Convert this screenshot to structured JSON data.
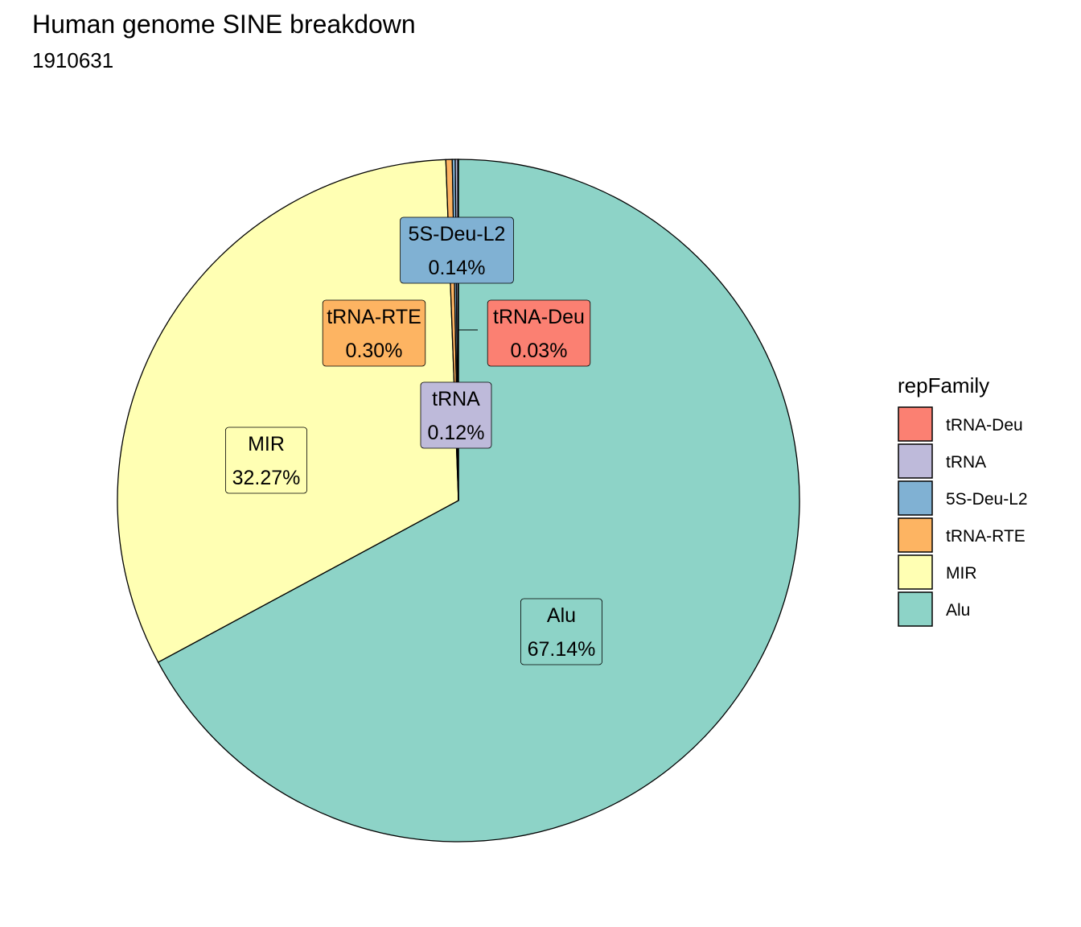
{
  "title": "Human genome SINE breakdown",
  "subtitle": "1910631",
  "chart_data": {
    "type": "pie",
    "title": "Human genome SINE breakdown",
    "subtitle": "1910631",
    "legend_title": "repFamily",
    "legend_position": "right",
    "start": "12 o'clock, clockwise from Alu",
    "slices": [
      {
        "name": "Alu",
        "percent": 67.14,
        "label": "67.14%",
        "color": "#8DD3C7"
      },
      {
        "name": "MIR",
        "percent": 32.27,
        "label": "32.27%",
        "color": "#FFFFB3"
      },
      {
        "name": "tRNA-RTE",
        "percent": 0.3,
        "label": "0.30%",
        "color": "#FDB462"
      },
      {
        "name": "5S-Deu-L2",
        "percent": 0.14,
        "label": "0.14%",
        "color": "#80B1D3"
      },
      {
        "name": "tRNA",
        "percent": 0.12,
        "label": "0.12%",
        "color": "#BEBADA"
      },
      {
        "name": "tRNA-Deu",
        "percent": 0.03,
        "label": "0.03%",
        "color": "#FB8072"
      }
    ],
    "legend_order": [
      "tRNA-Deu",
      "tRNA",
      "5S-Deu-L2",
      "tRNA-RTE",
      "MIR",
      "Alu"
    ]
  }
}
